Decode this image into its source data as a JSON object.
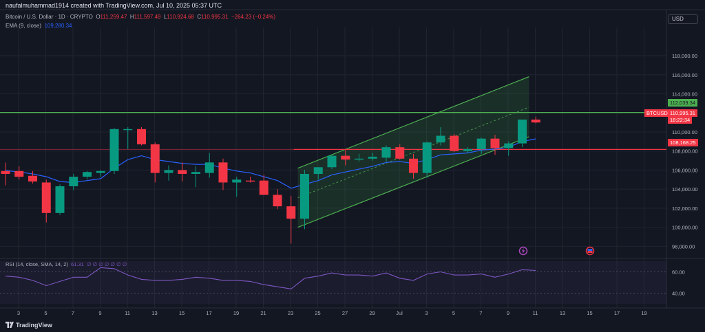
{
  "header": {
    "credit": "naufalmuhammad1914 created with TradingView.com, Jul 10, 2025 05:37 UTC",
    "symbol_desc": "Bitcoin / U.S. Dollar · 1D · CRYPTO",
    "ohlc": {
      "o_label": "O",
      "o": "111,259.47",
      "h_label": "H",
      "h": "111,597.49",
      "l_label": "L",
      "l": "110,924.68",
      "c_label": "C",
      "c": "110,995.31",
      "change": "−264.23 (−0.24%)"
    },
    "ema_label": "EMA (9, close)",
    "ema_value": "109,280.34",
    "currency": "USD"
  },
  "rsi_panel": {
    "label": "RSI (14, close, SMA, 14, 2)",
    "value": "61.31",
    "extra": "∅ ∅ ∅ ∅ ∅ ∅ ∅",
    "ticks": [
      "60.00",
      "40.00"
    ]
  },
  "price_tags": {
    "symbol": "BTCUSD",
    "price": "110,995.31",
    "countdown": "18:22:34",
    "resistance": "112,039.34",
    "support": "108,168.25"
  },
  "brand": "TradingView",
  "colors": {
    "background": "#131722",
    "up": "#089981",
    "down": "#f23645",
    "ema": "#2962ff",
    "channel": "#4caf50",
    "resistance_line": "#4caf50",
    "support_line": "#f23645",
    "rsi": "#7e57c2"
  },
  "chart_data": {
    "type": "candlestick",
    "symbol": "BTCUSD",
    "interval": "1D",
    "x_ticks": [
      "3",
      "5",
      "7",
      "9",
      "11",
      "13",
      "15",
      "17",
      "19",
      "21",
      "23",
      "25",
      "27",
      "29",
      "Jul",
      "3",
      "5",
      "7",
      "9",
      "11",
      "13",
      "15",
      "17",
      "19"
    ],
    "y_ticks": [
      "98,000.00",
      "100,000.00",
      "102,000.00",
      "104,000.00",
      "106,000.00",
      "108,000.00",
      "110,000.00",
      "112,000.00",
      "114,000.00",
      "116,000.00",
      "118,000.00"
    ],
    "y_range": [
      96800,
      120600
    ],
    "candles": [
      {
        "o": 105900,
        "h": 106800,
        "l": 104400,
        "c": 105600
      },
      {
        "o": 105900,
        "h": 106400,
        "l": 105000,
        "c": 105300
      },
      {
        "o": 105400,
        "h": 105900,
        "l": 104600,
        "c": 104800
      },
      {
        "o": 104700,
        "h": 105000,
        "l": 100500,
        "c": 101500
      },
      {
        "o": 101500,
        "h": 104500,
        "l": 101300,
        "c": 104300
      },
      {
        "o": 104300,
        "h": 105600,
        "l": 103900,
        "c": 105300
      },
      {
        "o": 105300,
        "h": 105900,
        "l": 105000,
        "c": 105800
      },
      {
        "o": 105700,
        "h": 106000,
        "l": 105300,
        "c": 105900
      },
      {
        "o": 105900,
        "h": 110400,
        "l": 105600,
        "c": 110300
      },
      {
        "o": 110300,
        "h": 110500,
        "l": 108200,
        "c": 110300
      },
      {
        "o": 110300,
        "h": 110500,
        "l": 108600,
        "c": 108700
      },
      {
        "o": 108700,
        "h": 108900,
        "l": 104700,
        "c": 105700
      },
      {
        "o": 105700,
        "h": 106500,
        "l": 104900,
        "c": 106000
      },
      {
        "o": 106000,
        "h": 106800,
        "l": 104800,
        "c": 105600
      },
      {
        "o": 105600,
        "h": 106400,
        "l": 104200,
        "c": 105800
      },
      {
        "o": 105700,
        "h": 107800,
        "l": 105200,
        "c": 106800
      },
      {
        "o": 106800,
        "h": 107200,
        "l": 103900,
        "c": 104700
      },
      {
        "o": 104700,
        "h": 105300,
        "l": 103200,
        "c": 105000
      },
      {
        "o": 104900,
        "h": 105300,
        "l": 104700,
        "c": 104800
      },
      {
        "o": 104900,
        "h": 105500,
        "l": 103500,
        "c": 103400
      },
      {
        "o": 103400,
        "h": 104000,
        "l": 101900,
        "c": 102200
      },
      {
        "o": 102200,
        "h": 103300,
        "l": 98300,
        "c": 100900
      },
      {
        "o": 100900,
        "h": 106000,
        "l": 99800,
        "c": 105600
      },
      {
        "o": 105600,
        "h": 106300,
        "l": 105000,
        "c": 106300
      },
      {
        "o": 106300,
        "h": 107600,
        "l": 106100,
        "c": 107500
      },
      {
        "o": 107500,
        "h": 108100,
        "l": 106500,
        "c": 107100
      },
      {
        "o": 107100,
        "h": 107700,
        "l": 106900,
        "c": 107200
      },
      {
        "o": 107200,
        "h": 107800,
        "l": 107000,
        "c": 107400
      },
      {
        "o": 107300,
        "h": 108600,
        "l": 106900,
        "c": 108400
      },
      {
        "o": 108400,
        "h": 108700,
        "l": 107100,
        "c": 107200
      },
      {
        "o": 107200,
        "h": 107700,
        "l": 105100,
        "c": 105700
      },
      {
        "o": 105700,
        "h": 109000,
        "l": 105200,
        "c": 108900
      },
      {
        "o": 108900,
        "h": 110500,
        "l": 108600,
        "c": 109600
      },
      {
        "o": 109600,
        "h": 109800,
        "l": 107900,
        "c": 108000
      },
      {
        "o": 108000,
        "h": 108400,
        "l": 107800,
        "c": 108200
      },
      {
        "o": 108200,
        "h": 109400,
        "l": 107700,
        "c": 109300
      },
      {
        "o": 109300,
        "h": 109700,
        "l": 107600,
        "c": 108300
      },
      {
        "o": 108300,
        "h": 109000,
        "l": 107500,
        "c": 108800
      },
      {
        "o": 108800,
        "h": 111300,
        "l": 108400,
        "c": 111300
      },
      {
        "o": 111300,
        "h": 111600,
        "l": 110900,
        "c": 110995
      }
    ],
    "ema": [
      105950,
      105800,
      105600,
      105300,
      104800,
      104700,
      104900,
      105100,
      106200,
      107100,
      107500,
      107100,
      106900,
      106700,
      106600,
      106600,
      106200,
      105900,
      105700,
      105300,
      104900,
      104100,
      104500,
      104900,
      105500,
      105800,
      106100,
      106400,
      106800,
      106900,
      106700,
      107100,
      107600,
      107700,
      107800,
      108100,
      108200,
      108400,
      109000,
      109280
    ],
    "resistance": 112039.34,
    "support": 108168.25,
    "channel": {
      "upper": [
        [
          21.5,
          106200
        ],
        [
          38.5,
          115800
        ]
      ],
      "lower": [
        [
          21.5,
          100000
        ],
        [
          38.5,
          109500
        ]
      ],
      "mid": [
        [
          21.5,
          103100
        ],
        [
          38.5,
          112600
        ]
      ]
    },
    "rsi": {
      "ylim": [
        30,
        70
      ],
      "values": [
        56,
        55,
        52,
        47,
        51,
        55,
        55,
        64,
        63,
        57,
        53,
        52,
        52,
        53,
        55,
        54,
        52,
        52,
        51,
        48,
        46,
        44,
        54,
        56,
        59,
        57,
        57,
        56,
        59,
        54,
        52,
        58,
        60,
        57,
        57,
        58,
        55,
        58,
        62,
        61.31
      ]
    }
  }
}
